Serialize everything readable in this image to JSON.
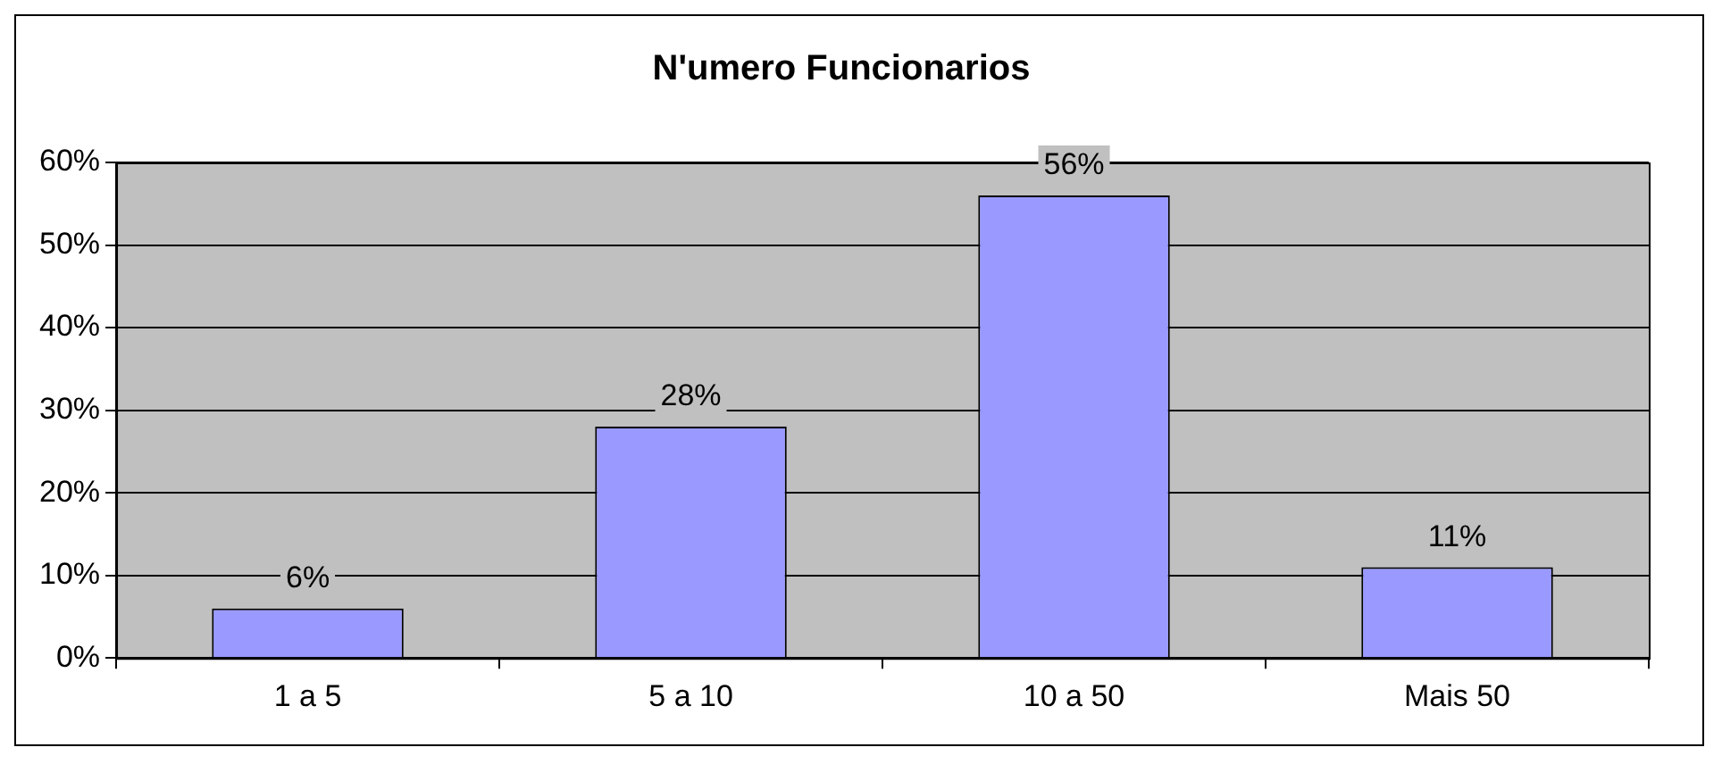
{
  "chart_data": {
    "type": "bar",
    "title": "N'umero Funcionarios",
    "categories": [
      "1 a 5",
      "5 a 10",
      "10 a 50",
      "Mais 50"
    ],
    "values": [
      6,
      28,
      56,
      11
    ],
    "value_labels": [
      "6%",
      "28%",
      "56%",
      "11%"
    ],
    "color": "#9999ff",
    "ylim": [
      0,
      60
    ],
    "yticks": [
      {
        "value": 0,
        "label": "0%"
      },
      {
        "value": 10,
        "label": "10%"
      },
      {
        "value": 20,
        "label": "20%"
      },
      {
        "value": 30,
        "label": "30%"
      },
      {
        "value": 40,
        "label": "40%"
      },
      {
        "value": 50,
        "label": "50%"
      },
      {
        "value": 60,
        "label": "60%"
      }
    ],
    "grid": "y",
    "legend": false
  }
}
